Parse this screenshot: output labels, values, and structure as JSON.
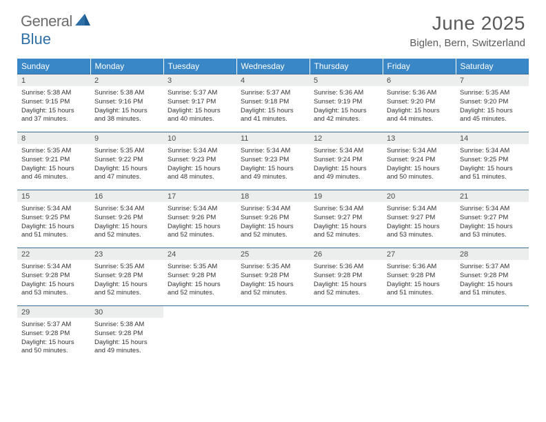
{
  "brand": {
    "word1": "General",
    "word2": "Blue"
  },
  "title": "June 2025",
  "location": "Biglen, Bern, Switzerland",
  "colors": {
    "header_bg": "#3a87c7",
    "header_text": "#ffffff",
    "row_border": "#3a6a8c",
    "daynum_bg": "#eceded",
    "body_text": "#333333",
    "title_text": "#5a5a5a",
    "logo_gray": "#6c6c6c",
    "logo_blue": "#2f6fa8"
  },
  "weekdays": [
    "Sunday",
    "Monday",
    "Tuesday",
    "Wednesday",
    "Thursday",
    "Friday",
    "Saturday"
  ],
  "weeks": [
    [
      {
        "day": "1",
        "sunrise": "5:38 AM",
        "sunset": "9:15 PM",
        "dl1": "Daylight: 15 hours",
        "dl2": "and 37 minutes."
      },
      {
        "day": "2",
        "sunrise": "5:38 AM",
        "sunset": "9:16 PM",
        "dl1": "Daylight: 15 hours",
        "dl2": "and 38 minutes."
      },
      {
        "day": "3",
        "sunrise": "5:37 AM",
        "sunset": "9:17 PM",
        "dl1": "Daylight: 15 hours",
        "dl2": "and 40 minutes."
      },
      {
        "day": "4",
        "sunrise": "5:37 AM",
        "sunset": "9:18 PM",
        "dl1": "Daylight: 15 hours",
        "dl2": "and 41 minutes."
      },
      {
        "day": "5",
        "sunrise": "5:36 AM",
        "sunset": "9:19 PM",
        "dl1": "Daylight: 15 hours",
        "dl2": "and 42 minutes."
      },
      {
        "day": "6",
        "sunrise": "5:36 AM",
        "sunset": "9:20 PM",
        "dl1": "Daylight: 15 hours",
        "dl2": "and 44 minutes."
      },
      {
        "day": "7",
        "sunrise": "5:35 AM",
        "sunset": "9:20 PM",
        "dl1": "Daylight: 15 hours",
        "dl2": "and 45 minutes."
      }
    ],
    [
      {
        "day": "8",
        "sunrise": "5:35 AM",
        "sunset": "9:21 PM",
        "dl1": "Daylight: 15 hours",
        "dl2": "and 46 minutes."
      },
      {
        "day": "9",
        "sunrise": "5:35 AM",
        "sunset": "9:22 PM",
        "dl1": "Daylight: 15 hours",
        "dl2": "and 47 minutes."
      },
      {
        "day": "10",
        "sunrise": "5:34 AM",
        "sunset": "9:23 PM",
        "dl1": "Daylight: 15 hours",
        "dl2": "and 48 minutes."
      },
      {
        "day": "11",
        "sunrise": "5:34 AM",
        "sunset": "9:23 PM",
        "dl1": "Daylight: 15 hours",
        "dl2": "and 49 minutes."
      },
      {
        "day": "12",
        "sunrise": "5:34 AM",
        "sunset": "9:24 PM",
        "dl1": "Daylight: 15 hours",
        "dl2": "and 49 minutes."
      },
      {
        "day": "13",
        "sunrise": "5:34 AM",
        "sunset": "9:24 PM",
        "dl1": "Daylight: 15 hours",
        "dl2": "and 50 minutes."
      },
      {
        "day": "14",
        "sunrise": "5:34 AM",
        "sunset": "9:25 PM",
        "dl1": "Daylight: 15 hours",
        "dl2": "and 51 minutes."
      }
    ],
    [
      {
        "day": "15",
        "sunrise": "5:34 AM",
        "sunset": "9:25 PM",
        "dl1": "Daylight: 15 hours",
        "dl2": "and 51 minutes."
      },
      {
        "day": "16",
        "sunrise": "5:34 AM",
        "sunset": "9:26 PM",
        "dl1": "Daylight: 15 hours",
        "dl2": "and 52 minutes."
      },
      {
        "day": "17",
        "sunrise": "5:34 AM",
        "sunset": "9:26 PM",
        "dl1": "Daylight: 15 hours",
        "dl2": "and 52 minutes."
      },
      {
        "day": "18",
        "sunrise": "5:34 AM",
        "sunset": "9:26 PM",
        "dl1": "Daylight: 15 hours",
        "dl2": "and 52 minutes."
      },
      {
        "day": "19",
        "sunrise": "5:34 AM",
        "sunset": "9:27 PM",
        "dl1": "Daylight: 15 hours",
        "dl2": "and 52 minutes."
      },
      {
        "day": "20",
        "sunrise": "5:34 AM",
        "sunset": "9:27 PM",
        "dl1": "Daylight: 15 hours",
        "dl2": "and 53 minutes."
      },
      {
        "day": "21",
        "sunrise": "5:34 AM",
        "sunset": "9:27 PM",
        "dl1": "Daylight: 15 hours",
        "dl2": "and 53 minutes."
      }
    ],
    [
      {
        "day": "22",
        "sunrise": "5:34 AM",
        "sunset": "9:28 PM",
        "dl1": "Daylight: 15 hours",
        "dl2": "and 53 minutes."
      },
      {
        "day": "23",
        "sunrise": "5:35 AM",
        "sunset": "9:28 PM",
        "dl1": "Daylight: 15 hours",
        "dl2": "and 52 minutes."
      },
      {
        "day": "24",
        "sunrise": "5:35 AM",
        "sunset": "9:28 PM",
        "dl1": "Daylight: 15 hours",
        "dl2": "and 52 minutes."
      },
      {
        "day": "25",
        "sunrise": "5:35 AM",
        "sunset": "9:28 PM",
        "dl1": "Daylight: 15 hours",
        "dl2": "and 52 minutes."
      },
      {
        "day": "26",
        "sunrise": "5:36 AM",
        "sunset": "9:28 PM",
        "dl1": "Daylight: 15 hours",
        "dl2": "and 52 minutes."
      },
      {
        "day": "27",
        "sunrise": "5:36 AM",
        "sunset": "9:28 PM",
        "dl1": "Daylight: 15 hours",
        "dl2": "and 51 minutes."
      },
      {
        "day": "28",
        "sunrise": "5:37 AM",
        "sunset": "9:28 PM",
        "dl1": "Daylight: 15 hours",
        "dl2": "and 51 minutes."
      }
    ],
    [
      {
        "day": "29",
        "sunrise": "5:37 AM",
        "sunset": "9:28 PM",
        "dl1": "Daylight: 15 hours",
        "dl2": "and 50 minutes."
      },
      {
        "day": "30",
        "sunrise": "5:38 AM",
        "sunset": "9:28 PM",
        "dl1": "Daylight: 15 hours",
        "dl2": "and 49 minutes."
      },
      null,
      null,
      null,
      null,
      null
    ]
  ]
}
